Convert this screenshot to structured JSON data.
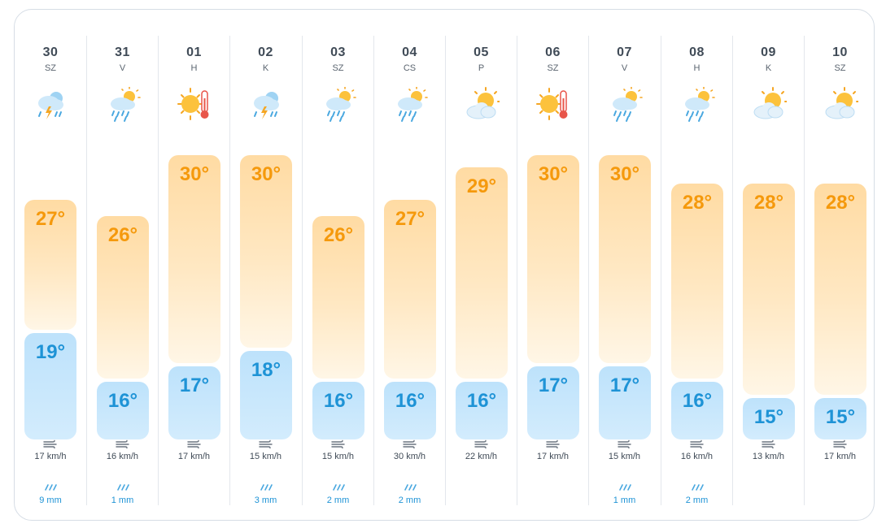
{
  "forecast": {
    "days": [
      {
        "date": "30",
        "weekday": "SZ",
        "icon": "storm-rain-icon",
        "high": "27°",
        "low": "19°",
        "high_value": 27,
        "low_value": 19,
        "wind": "17 km/h",
        "rain": "9 mm"
      },
      {
        "date": "31",
        "weekday": "V",
        "icon": "sun-rain-icon",
        "high": "26°",
        "low": "16°",
        "high_value": 26,
        "low_value": 16,
        "wind": "16 km/h",
        "rain": "1 mm"
      },
      {
        "date": "01",
        "weekday": "H",
        "icon": "hot-sun-icon",
        "high": "30°",
        "low": "17°",
        "high_value": 30,
        "low_value": 17,
        "wind": "17 km/h",
        "rain": ""
      },
      {
        "date": "02",
        "weekday": "K",
        "icon": "storm-rain-icon",
        "high": "30°",
        "low": "18°",
        "high_value": 30,
        "low_value": 18,
        "wind": "15 km/h",
        "rain": "3 mm"
      },
      {
        "date": "03",
        "weekday": "SZ",
        "icon": "sun-rain-icon",
        "high": "26°",
        "low": "16°",
        "high_value": 26,
        "low_value": 16,
        "wind": "15 km/h",
        "rain": "2 mm"
      },
      {
        "date": "04",
        "weekday": "CS",
        "icon": "sun-rain-icon",
        "high": "27°",
        "low": "16°",
        "high_value": 27,
        "low_value": 16,
        "wind": "30 km/h",
        "rain": "2 mm"
      },
      {
        "date": "05",
        "weekday": "P",
        "icon": "partly-cloudy-icon",
        "high": "29°",
        "low": "16°",
        "high_value": 29,
        "low_value": 16,
        "wind": "22 km/h",
        "rain": ""
      },
      {
        "date": "06",
        "weekday": "SZ",
        "icon": "hot-sun-icon",
        "high": "30°",
        "low": "17°",
        "high_value": 30,
        "low_value": 17,
        "wind": "17 km/h",
        "rain": ""
      },
      {
        "date": "07",
        "weekday": "V",
        "icon": "sun-rain-icon",
        "high": "30°",
        "low": "17°",
        "high_value": 30,
        "low_value": 17,
        "wind": "15 km/h",
        "rain": "1 mm"
      },
      {
        "date": "08",
        "weekday": "H",
        "icon": "sun-rain-icon",
        "high": "28°",
        "low": "16°",
        "high_value": 28,
        "low_value": 16,
        "wind": "16 km/h",
        "rain": "2 mm"
      },
      {
        "date": "09",
        "weekday": "K",
        "icon": "partly-cloudy-icon",
        "high": "28°",
        "low": "15°",
        "high_value": 28,
        "low_value": 15,
        "wind": "13 km/h",
        "rain": ""
      },
      {
        "date": "10",
        "weekday": "SZ",
        "icon": "partly-cloudy-icon",
        "high": "28°",
        "low": "15°",
        "high_value": 28,
        "low_value": 15,
        "wind": "17 km/h",
        "rain": ""
      }
    ]
  },
  "colors": {
    "high_text": "#f5990c",
    "low_text": "#1e93d6",
    "high_bar": "#ffdba3",
    "low_bar": "#bde2fb",
    "rain_text": "#1e93d6"
  }
}
